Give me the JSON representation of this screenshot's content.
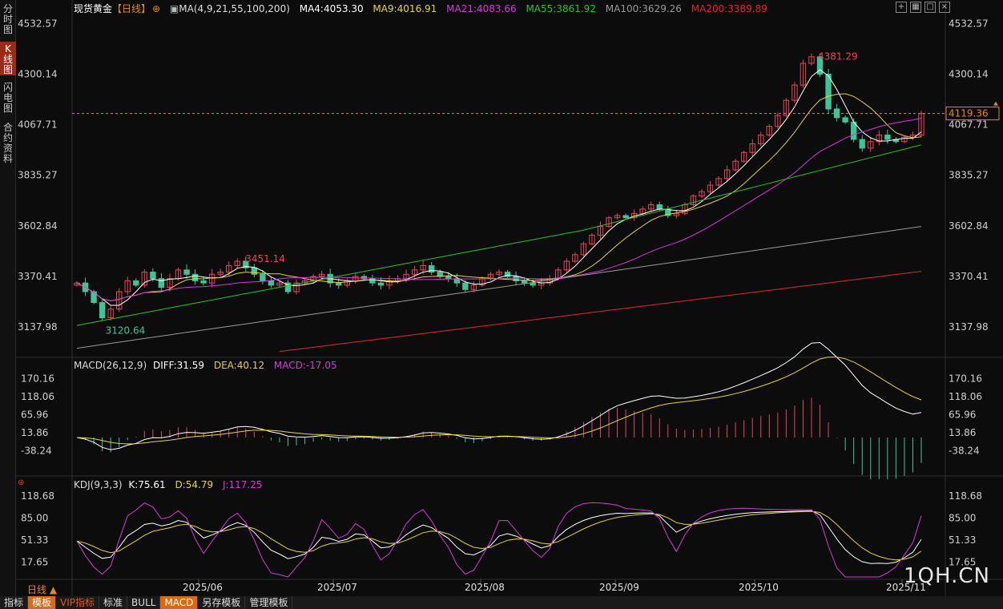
{
  "sidebar": {
    "tabs": [
      {
        "label": "分时图",
        "active": false
      },
      {
        "label": "K线图",
        "active": true
      },
      {
        "label": "闪电图",
        "active": false
      },
      {
        "label": "合约资料",
        "active": false
      }
    ]
  },
  "header": {
    "instrument": "现货黄金",
    "period_tag": "【日线】",
    "ma_params": "MA(4,9,21,55,100,200)",
    "ma4": "MA4:4053.30",
    "ma9": "MA9:4016.91",
    "ma21": "MA21:4083.66",
    "ma55": "MA55:3861.92",
    "ma100": "MA100:3629.26",
    "ma200": "MA200:3389.89"
  },
  "price_axis": {
    "ticks": [
      "4532.57",
      "4300.14",
      "4067.71",
      "3835.27",
      "3602.84",
      "3370.41",
      "3137.98"
    ],
    "current_price": "4119.36"
  },
  "annotations": {
    "high": "4381.29",
    "mid_high": "3451.14",
    "low": "3120.64"
  },
  "macd": {
    "legend": "MACD(26,12,9)",
    "diff": "DIFF:31.59",
    "dea": "DEA:40.12",
    "macd_val": "MACD:-17.05",
    "ticks": [
      "170.16",
      "118.06",
      "65.96",
      "13.86",
      "-38.24"
    ]
  },
  "kdj": {
    "legend": "KDJ(9,3,3)",
    "k": "K:75.61",
    "d": "D:54.79",
    "j": "J:117.25",
    "ticks": [
      "118.68",
      "85.00",
      "51.33",
      "17.65"
    ]
  },
  "x_axis": {
    "labels": [
      "2025/06",
      "2025/07",
      "2025/08",
      "2025/09",
      "2025/10",
      "2025/11"
    ]
  },
  "bottom_bar": {
    "items": [
      "指标",
      "模板",
      "VIP指标",
      "标准",
      "BULL",
      "MACD",
      "另存模板",
      "管理模板"
    ]
  },
  "period_label": "日线",
  "watermark": "1QH.CN",
  "colors": {
    "up": "#e8445a",
    "down": "#3fc497",
    "ma4": "#ffffff",
    "ma9": "#e8d23a",
    "ma21": "#d53ad8",
    "ma55": "#27c427",
    "ma100": "#9a9a9a",
    "ma200": "#e02a2a",
    "accent": "#e08a1a"
  },
  "chart_data": {
    "type": "candlestick",
    "price_range": [
      3020,
      4560
    ],
    "candles_close_approx": [
      3340,
      3300,
      3250,
      3180,
      3220,
      3300,
      3350,
      3330,
      3390,
      3360,
      3320,
      3360,
      3400,
      3380,
      3350,
      3340,
      3380,
      3390,
      3420,
      3440,
      3410,
      3380,
      3350,
      3330,
      3340,
      3300,
      3340,
      3350,
      3370,
      3380,
      3340,
      3330,
      3350,
      3370,
      3360,
      3340,
      3330,
      3350,
      3360,
      3380,
      3400,
      3420,
      3390,
      3370,
      3360,
      3340,
      3310,
      3330,
      3360,
      3380,
      3390,
      3370,
      3350,
      3340,
      3330,
      3340,
      3360,
      3400,
      3440,
      3470,
      3520,
      3560,
      3600,
      3640,
      3650,
      3640,
      3660,
      3680,
      3700,
      3680,
      3650,
      3660,
      3700,
      3740,
      3760,
      3790,
      3820,
      3860,
      3900,
      3940,
      3980,
      4020,
      4060,
      4110,
      4180,
      4250,
      4350,
      4380,
      4300,
      4140,
      4100,
      4080,
      4000,
      3960,
      3990,
      4020,
      4000,
      3990,
      4010,
      4020,
      4119
    ],
    "macd": {
      "diff": 31.59,
      "dea": 40.12,
      "macd": -17.05,
      "range": [
        -60,
        185
      ]
    },
    "kdj": {
      "k": 75.61,
      "d": 54.79,
      "j": 117.25,
      "range": [
        -5,
        125
      ]
    }
  }
}
